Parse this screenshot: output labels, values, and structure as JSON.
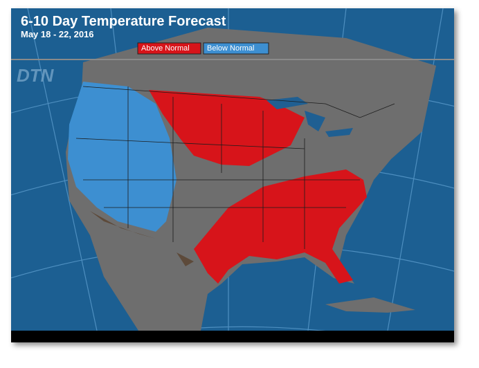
{
  "header": {
    "title": "6-10 Day Temperature Forecast",
    "subtitle": "May 18 - 22, 2016",
    "logo": "DTN"
  },
  "legend": [
    {
      "label": "Above Normal",
      "color": "#d7141a"
    },
    {
      "label": "Below Normal",
      "color": "#3d8fd1"
    }
  ]
}
